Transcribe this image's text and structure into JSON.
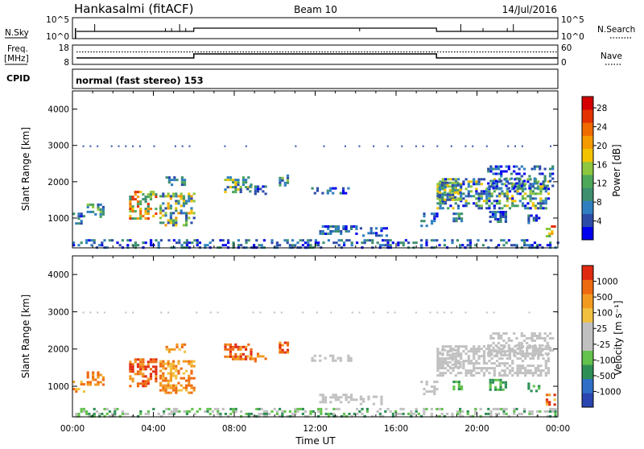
{
  "header": {
    "station": "Hankasalmi (fitACF)",
    "beam": "Beam 10",
    "date": "14/Jul/2016"
  },
  "top_panel": {
    "left_label": "N.Sky",
    "left_ticks": [
      "10^5",
      "10^0"
    ],
    "right_ticks": [
      "10^5",
      "10^0"
    ],
    "right_label": "N.Search"
  },
  "freq_panel": {
    "left_label_1": "Freq.",
    "left_label_2": "[MHz]",
    "left_ticks": [
      "18",
      "8"
    ],
    "right_ticks": [
      "60",
      "0"
    ],
    "right_label": "Nave"
  },
  "cpid": {
    "label": "CPID",
    "value": "normal (fast stereo) 153"
  },
  "chart_data": [
    {
      "type": "heatmap",
      "name": "power",
      "ylabel": "Slant Range [km]",
      "ylim": [
        180,
        4500
      ],
      "yticks": [
        "1000",
        "2000",
        "3000",
        "4000"
      ],
      "xlim_hours": [
        0,
        24
      ],
      "colorbar_label": "Power [dB]",
      "colorbar_ticks": [
        "4",
        "8",
        "12",
        "16",
        "20",
        "24",
        "28"
      ],
      "colorbar": [
        "#0000ee",
        "#2c4ca8",
        "#2f7fc0",
        "#3d8f6f",
        "#4ea85a",
        "#8ec63f",
        "#f2c200",
        "#f59a00",
        "#ef6a00",
        "#e43200",
        "#d40000"
      ]
    },
    {
      "type": "heatmap",
      "name": "velocity",
      "ylabel": "Slant Range [km]",
      "ylim": [
        180,
        4500
      ],
      "yticks": [
        "1000",
        "2000",
        "3000",
        "4000"
      ],
      "xlim_hours": [
        0,
        24
      ],
      "colorbar_label": "Velocity [m s⁻¹]",
      "colorbar_ticks": [
        "1000",
        "500",
        "100",
        "25",
        "-25",
        "-100",
        "-500",
        "-1000"
      ],
      "colorbar": [
        "#2a45b0",
        "#2f6fc8",
        "#2e8f56",
        "#62c24c",
        "#c0c0c0",
        "#c0c0c0",
        "#f2c040",
        "#f29a20",
        "#ee6a10",
        "#e02a10"
      ]
    }
  ],
  "x_axis": {
    "ticks": [
      "00:00",
      "04:00",
      "08:00",
      "12:00",
      "16:00",
      "20:00",
      "00:00"
    ],
    "label": "Time UT"
  },
  "colors": {
    "nsky_line": "#000000",
    "grey_scatter": "#c0c0c0"
  }
}
